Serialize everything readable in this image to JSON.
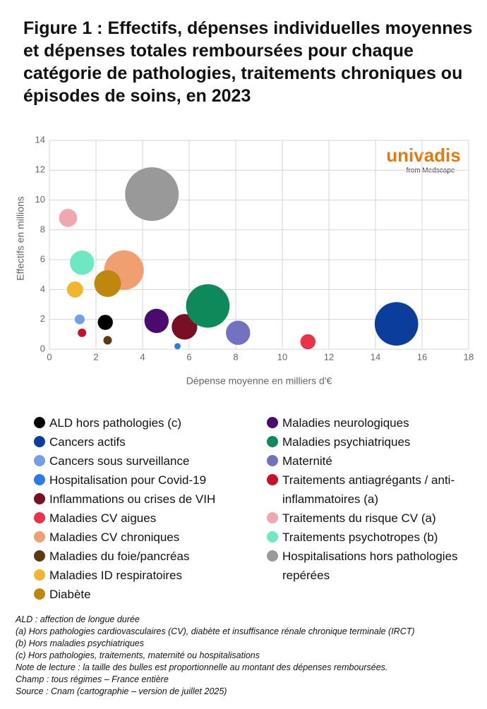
{
  "chart_data": {
    "type": "bubble",
    "title": "Figure 1 : Effectifs, dépenses individuelles moyennes et dépenses totales remboursées pour chaque catégorie de pathologies, traitements chroniques ou épisodes de soins, en 2023",
    "x_label": "Dépense moyenne en milliers d'€",
    "y_label": "Effectifs en millions",
    "logo": {
      "brand": "univadis",
      "sub": "from Medscape"
    },
    "xlim": [
      0,
      18
    ],
    "xticks": [
      0,
      2,
      4,
      6,
      8,
      10,
      12,
      14,
      16,
      18
    ],
    "ylim": [
      0,
      14
    ],
    "yticks": [
      0,
      2,
      4,
      6,
      8,
      10,
      12,
      14
    ],
    "grid": true,
    "series": [
      {
        "name": "ALD hors pathologies (c)",
        "color": "#000000",
        "x": [
          2.4
        ],
        "values": [
          1.8
        ],
        "sizes": [
          3.5
        ]
      },
      {
        "name": "Cancers actifs",
        "color": "#0a3d9c",
        "x": [
          14.9
        ],
        "values": [
          1.7
        ],
        "sizes": [
          29
        ]
      },
      {
        "name": "Cancers sous surveillance",
        "color": "#6fa0e8",
        "x": [
          1.3
        ],
        "values": [
          2.0
        ],
        "sizes": [
          1.5
        ]
      },
      {
        "name": "Hospitalisation pour Covid-19",
        "color": "#2b7be6",
        "x": [
          5.5
        ],
        "values": [
          0.2
        ],
        "sizes": [
          0.6
        ]
      },
      {
        "name": "Inflammations ou crises de VIH",
        "color": "#7a0e22",
        "x": [
          5.8
        ],
        "values": [
          1.5
        ],
        "sizes": [
          10
        ]
      },
      {
        "name": "Maladies CV aigues",
        "color": "#e8334a",
        "x": [
          11.1
        ],
        "values": [
          0.5
        ],
        "sizes": [
          3.5
        ]
      },
      {
        "name": "Maladies CV chroniques",
        "color": "#f0a070",
        "x": [
          3.2
        ],
        "values": [
          5.3
        ],
        "sizes": [
          24
        ]
      },
      {
        "name": "Maladies du foie/pancréas",
        "color": "#5a3a0e",
        "x": [
          2.5
        ],
        "values": [
          0.6
        ],
        "sizes": [
          1.1
        ]
      },
      {
        "name": "Maladies ID respiratoires",
        "color": "#f2b52e",
        "x": [
          1.1
        ],
        "values": [
          4.0
        ],
        "sizes": [
          4
        ]
      },
      {
        "name": "Diabète",
        "color": "#c0870e",
        "x": [
          2.5
        ],
        "values": [
          4.4
        ],
        "sizes": [
          11
        ]
      },
      {
        "name": "Maladies neurologiques",
        "color": "#4a0a6e",
        "x": [
          4.6
        ],
        "values": [
          1.9
        ],
        "sizes": [
          9
        ]
      },
      {
        "name": "Maladies psychiatriques",
        "color": "#0e8a5a",
        "x": [
          6.8
        ],
        "values": [
          2.9
        ],
        "sizes": [
          29
        ]
      },
      {
        "name": "Maternité",
        "color": "#7272c0",
        "x": [
          8.1
        ],
        "values": [
          1.1
        ],
        "sizes": [
          9
        ]
      },
      {
        "name": "Traitements antiagrégants / anti-inflammatoires (a)",
        "color": "#c8102e",
        "x": [
          1.4
        ],
        "values": [
          1.1
        ],
        "sizes": [
          1.1
        ]
      },
      {
        "name": "Traitements du risque CV (a)",
        "color": "#f0a8b0",
        "x": [
          0.8
        ],
        "values": [
          8.8
        ],
        "sizes": [
          5
        ]
      },
      {
        "name": "Traitements psychotropes (b)",
        "color": "#6ee8c0",
        "x": [
          1.4
        ],
        "values": [
          5.8
        ],
        "sizes": [
          9
        ]
      },
      {
        "name": "Hospitalisations hors pathologies repérées",
        "color": "#999999",
        "x": [
          4.4
        ],
        "values": [
          10.4
        ],
        "sizes": [
          44
        ]
      }
    ],
    "notes": [
      "ALD : affection de longue durée",
      "(a) Hors pathologies cardiovasculaires (CV), diabète et insuffisance rénale chronique terminale (IRCT)",
      "(b) Hors maladies psychiatriques",
      "(c) Hors pathologies, traitements, maternité ou hospitalisations",
      "Note de lecture : la taille des bulles est proportionnelle au montant des dépenses remboursées.",
      "Champ : tous régimes – France entière",
      "Source : Cnam (cartographie – version de juillet 2025)"
    ]
  }
}
